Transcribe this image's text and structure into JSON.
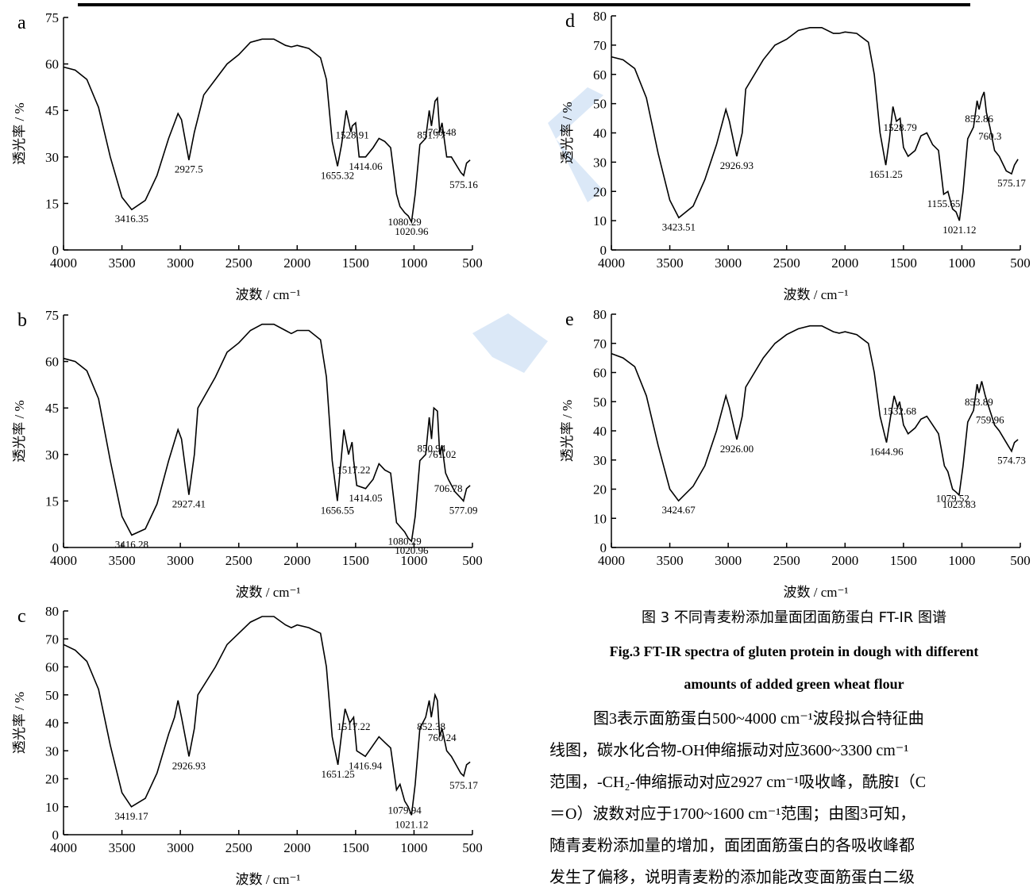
{
  "chart_data": [
    {
      "type": "line",
      "label": "a",
      "ylabel": "透光率 / %",
      "xlabel": "波数 / cm⁻¹",
      "color": "#000000",
      "xlim": [
        4000,
        500
      ],
      "xticks": [
        4000,
        3500,
        3000,
        2500,
        2000,
        1500,
        1000,
        500
      ],
      "ylim": [
        0,
        75
      ],
      "yticks": [
        0,
        15,
        30,
        45,
        60,
        75
      ],
      "x": [
        4000,
        3900,
        3800,
        3700,
        3600,
        3500,
        3416,
        3300,
        3200,
        3100,
        3020,
        2990,
        2927,
        2880,
        2800,
        2700,
        2600,
        2500,
        2400,
        2300,
        2200,
        2100,
        2050,
        2000,
        1900,
        1800,
        1750,
        1700,
        1655,
        1620,
        1580,
        1540,
        1528,
        1500,
        1470,
        1414,
        1350,
        1300,
        1250,
        1200,
        1150,
        1120,
        1080,
        1050,
        1021,
        990,
        950,
        900,
        870,
        851,
        820,
        800,
        780,
        760,
        720,
        680,
        600,
        575,
        550,
        520
      ],
      "values": [
        59,
        58,
        55,
        46,
        30,
        17,
        13,
        16,
        24,
        36,
        44,
        42,
        29,
        38,
        50,
        55,
        60,
        63,
        67,
        68,
        68,
        66,
        65.5,
        66,
        65,
        62,
        55,
        35,
        27,
        34,
        45,
        38,
        40,
        41,
        30,
        30,
        33,
        36,
        35,
        33,
        18,
        14,
        12,
        11,
        9,
        18,
        34,
        36,
        45,
        40,
        48,
        49,
        38,
        41,
        30,
        30,
        25,
        24,
        28,
        29
      ],
      "annotations": [
        {
          "label": "3416.35",
          "x": 3416.35,
          "y": 13
        },
        {
          "label": "2927.5",
          "x": 2927.5,
          "y": 29
        },
        {
          "label": "1655.32",
          "x": 1655.32,
          "y": 27
        },
        {
          "label": "1528.91",
          "x": 1528.91,
          "y": 40
        },
        {
          "label": "1414.06",
          "x": 1414.06,
          "y": 30
        },
        {
          "label": "1080.29",
          "x": 1080.29,
          "y": 12
        },
        {
          "label": "1020.96",
          "x": 1020.96,
          "y": 9
        },
        {
          "label": "851.77",
          "x": 851.77,
          "y": 40
        },
        {
          "label": "760.48",
          "x": 760.48,
          "y": 41
        },
        {
          "label": "575.16",
          "x": 575.16,
          "y": 24
        }
      ]
    },
    {
      "type": "line",
      "label": "b",
      "ylabel": "透光率 / %",
      "xlabel": "波数 / cm⁻¹",
      "color": "#000000",
      "xlim": [
        4000,
        500
      ],
      "xticks": [
        4000,
        3500,
        3000,
        2500,
        2000,
        1500,
        1000,
        500
      ],
      "ylim": [
        0,
        75
      ],
      "yticks": [
        0,
        15,
        30,
        45,
        60,
        75
      ],
      "x": [
        4000,
        3900,
        3800,
        3700,
        3600,
        3500,
        3416,
        3300,
        3200,
        3100,
        3020,
        2990,
        2927,
        2880,
        2850,
        2700,
        2600,
        2500,
        2400,
        2300,
        2200,
        2100,
        2050,
        2000,
        1900,
        1800,
        1750,
        1700,
        1656,
        1620,
        1600,
        1560,
        1530,
        1517,
        1490,
        1414,
        1350,
        1300,
        1250,
        1200,
        1150,
        1080,
        1050,
        1021,
        990,
        950,
        900,
        870,
        850,
        830,
        800,
        780,
        761,
        730,
        706,
        650,
        600,
        577,
        550,
        520
      ],
      "values": [
        61,
        60,
        57,
        48,
        28,
        10,
        4,
        6,
        14,
        28,
        38,
        35,
        17,
        30,
        45,
        55,
        63,
        66,
        70,
        72,
        72,
        70,
        69,
        70,
        70,
        67,
        55,
        28,
        15,
        30,
        38,
        30,
        34,
        28,
        20,
        19,
        22,
        27,
        25,
        24,
        8,
        5,
        3,
        2,
        10,
        28,
        30,
        42,
        35,
        45,
        44,
        30,
        33,
        24,
        22,
        18,
        16,
        15,
        19,
        20
      ],
      "annotations": [
        {
          "label": "3416.28",
          "x": 3416.28,
          "y": 4
        },
        {
          "label": "2927.41",
          "x": 2927.41,
          "y": 17
        },
        {
          "label": "1656.55",
          "x": 1656.55,
          "y": 15
        },
        {
          "label": "1517.22",
          "x": 1517.22,
          "y": 28
        },
        {
          "label": "1414.05",
          "x": 1414.05,
          "y": 19
        },
        {
          "label": "1080.29",
          "x": 1080.29,
          "y": 5
        },
        {
          "label": "1020.96",
          "x": 1020.96,
          "y": 2
        },
        {
          "label": "850.94",
          "x": 850.94,
          "y": 35
        },
        {
          "label": "761.02",
          "x": 761.02,
          "y": 33
        },
        {
          "label": "706.78",
          "x": 706.78,
          "y": 22
        },
        {
          "label": "577.09",
          "x": 577.09,
          "y": 15
        }
      ]
    },
    {
      "type": "line",
      "label": "c",
      "ylabel": "透光率 / %",
      "xlabel": "波数 / cm⁻¹",
      "color": "#000000",
      "xlim": [
        4000,
        500
      ],
      "xticks": [
        4000,
        3500,
        3000,
        2500,
        2000,
        1500,
        1000,
        500
      ],
      "ylim": [
        0,
        80
      ],
      "yticks": [
        0,
        10,
        20,
        30,
        40,
        50,
        60,
        70,
        80
      ],
      "x": [
        4000,
        3900,
        3800,
        3700,
        3600,
        3500,
        3419,
        3300,
        3200,
        3100,
        3050,
        3020,
        2990,
        2926,
        2880,
        2850,
        2700,
        2600,
        2500,
        2400,
        2300,
        2200,
        2100,
        2050,
        2000,
        1900,
        1800,
        1750,
        1700,
        1651,
        1620,
        1590,
        1550,
        1517,
        1490,
        1417,
        1350,
        1300,
        1250,
        1200,
        1150,
        1120,
        1080,
        1050,
        1021,
        990,
        950,
        900,
        870,
        852,
        820,
        800,
        780,
        760,
        720,
        680,
        600,
        575,
        550,
        520
      ],
      "values": [
        68,
        66,
        62,
        52,
        32,
        15,
        10,
        13,
        22,
        36,
        42,
        48,
        42,
        28,
        38,
        50,
        60,
        68,
        72,
        76,
        78,
        78,
        75,
        74,
        75,
        74,
        72,
        60,
        35,
        25,
        36,
        45,
        40,
        42,
        30,
        28,
        32,
        35,
        33,
        31,
        16,
        18,
        12,
        10,
        7,
        18,
        38,
        42,
        48,
        42,
        50,
        48,
        35,
        38,
        30,
        28,
        22,
        21,
        25,
        26
      ],
      "annotations": [
        {
          "label": "3419.17",
          "x": 3419.17,
          "y": 10
        },
        {
          "label": "2926.93",
          "x": 2926.93,
          "y": 28
        },
        {
          "label": "1651.25",
          "x": 1651.25,
          "y": 25
        },
        {
          "label": "1517.22",
          "x": 1517.22,
          "y": 42
        },
        {
          "label": "1416.94",
          "x": 1416.94,
          "y": 28
        },
        {
          "label": "1079.94",
          "x": 1079.94,
          "y": 12
        },
        {
          "label": "1021.12",
          "x": 1021.12,
          "y": 7
        },
        {
          "label": "852.38",
          "x": 852.38,
          "y": 42
        },
        {
          "label": "760.24",
          "x": 760.24,
          "y": 38
        },
        {
          "label": "575.17",
          "x": 575.17,
          "y": 21
        }
      ]
    },
    {
      "type": "line",
      "label": "d",
      "ylabel": "透光率 / %",
      "xlabel": "波数 / cm⁻¹",
      "color": "#000000",
      "xlim": [
        4000,
        500
      ],
      "xticks": [
        4000,
        3500,
        3000,
        2500,
        2000,
        1500,
        1000,
        500
      ],
      "ylim": [
        0,
        80
      ],
      "yticks": [
        0,
        10,
        20,
        30,
        40,
        50,
        60,
        70,
        80
      ],
      "x": [
        4000,
        3900,
        3800,
        3700,
        3600,
        3500,
        3423,
        3300,
        3200,
        3100,
        3020,
        2990,
        2927,
        2880,
        2850,
        2700,
        2600,
        2500,
        2400,
        2300,
        2200,
        2100,
        2050,
        2000,
        1900,
        1800,
        1750,
        1700,
        1651,
        1620,
        1590,
        1560,
        1529,
        1500,
        1460,
        1400,
        1350,
        1300,
        1250,
        1200,
        1156,
        1120,
        1080,
        1050,
        1021,
        990,
        950,
        900,
        870,
        853,
        830,
        810,
        790,
        760,
        720,
        680,
        620,
        575,
        550,
        520
      ],
      "values": [
        66,
        65,
        62,
        52,
        33,
        17,
        11,
        15,
        24,
        36,
        48,
        44,
        32,
        40,
        55,
        65,
        70,
        72,
        75,
        76,
        76,
        74,
        74,
        74.5,
        74,
        71,
        60,
        40,
        29,
        38,
        49,
        44,
        45,
        35,
        32,
        34,
        39,
        40,
        36,
        34,
        19,
        20,
        14,
        13,
        10,
        20,
        38,
        42,
        51,
        48,
        52,
        54,
        47,
        42,
        34,
        32,
        27,
        26,
        29,
        31
      ],
      "annotations": [
        {
          "label": "3423.51",
          "x": 3423.51,
          "y": 11
        },
        {
          "label": "2926.93",
          "x": 2926.93,
          "y": 32
        },
        {
          "label": "1651.25",
          "x": 1651.25,
          "y": 29
        },
        {
          "label": "1528.79",
          "x": 1528.79,
          "y": 45
        },
        {
          "label": "1155.65",
          "x": 1155.65,
          "y": 19
        },
        {
          "label": "1021.12",
          "x": 1021.12,
          "y": 10
        },
        {
          "label": "852.86",
          "x": 852.86,
          "y": 48
        },
        {
          "label": "760.3",
          "x": 760.3,
          "y": 42
        },
        {
          "label": "575.17",
          "x": 575.17,
          "y": 26
        }
      ]
    },
    {
      "type": "line",
      "label": "e",
      "ylabel": "透光率 / %",
      "xlabel": "波数 / cm⁻¹",
      "color": "#000000",
      "xlim": [
        4000,
        500
      ],
      "xticks": [
        4000,
        3500,
        3000,
        2500,
        2000,
        1500,
        1000,
        500
      ],
      "ylim": [
        0,
        80
      ],
      "yticks": [
        0,
        10,
        20,
        30,
        40,
        50,
        60,
        70,
        80
      ],
      "x": [
        4000,
        3900,
        3800,
        3700,
        3600,
        3500,
        3425,
        3300,
        3200,
        3100,
        3020,
        2990,
        2926,
        2880,
        2850,
        2700,
        2600,
        2500,
        2400,
        2300,
        2200,
        2100,
        2050,
        2000,
        1900,
        1800,
        1750,
        1700,
        1645,
        1610,
        1580,
        1550,
        1533,
        1500,
        1460,
        1400,
        1350,
        1300,
        1250,
        1200,
        1150,
        1120,
        1080,
        1050,
        1024,
        990,
        950,
        900,
        870,
        854,
        830,
        800,
        760,
        720,
        680,
        620,
        575,
        550,
        520
      ],
      "values": [
        66.5,
        65,
        62,
        52,
        35,
        20,
        16,
        21,
        28,
        40,
        52,
        48,
        37,
        45,
        55,
        65,
        70,
        73,
        75,
        76,
        76,
        74,
        73.5,
        74,
        73,
        70,
        60,
        45,
        36,
        45,
        52,
        48,
        50,
        42,
        39,
        41,
        44,
        45,
        42,
        39,
        28,
        26,
        20,
        19,
        18,
        28,
        43,
        47,
        56,
        53,
        57,
        52,
        47,
        42,
        40,
        36,
        33,
        36,
        37
      ],
      "annotations": [
        {
          "label": "3424.67",
          "x": 3424.67,
          "y": 16
        },
        {
          "label": "2926.00",
          "x": 2926,
          "y": 37
        },
        {
          "label": "1644.96",
          "x": 1644.96,
          "y": 36
        },
        {
          "label": "1532.68",
          "x": 1532.68,
          "y": 50
        },
        {
          "label": "1079.52",
          "x": 1079.52,
          "y": 20
        },
        {
          "label": "1023.83",
          "x": 1023.83,
          "y": 18
        },
        {
          "label": "853.89",
          "x": 853.89,
          "y": 53
        },
        {
          "label": "759.96",
          "x": 759.96,
          "y": 47
        },
        {
          "label": "574.73",
          "x": 574.73,
          "y": 33
        }
      ]
    }
  ],
  "text": {
    "caption_cn": "图 3 不同青麦粉添加量面团面筋蛋白 FT-IR 图谱",
    "caption_en": [
      "Fig.3 FT-IR spectra of gluten protein in dough with different",
      "amounts of added green wheat flour"
    ],
    "paragraph": [
      "图3表示面筋蛋白500~4000 cm⁻¹波段拟合特征曲",
      "线图，碳水化合物-OH伸缩振动对应3600~3300 cm⁻¹",
      "范围，-CH₂-伸缩振动对应2927 cm⁻¹吸收峰，酰胺I（C",
      "＝O）波数对应于1700~1600 cm⁻¹范围；由图3可知，",
      "随青麦粉添加量的增加，面团面筋蛋白的各吸收峰都",
      "发生了偏移，说明青麦粉的添加能改变面筋蛋白二级"
    ]
  }
}
